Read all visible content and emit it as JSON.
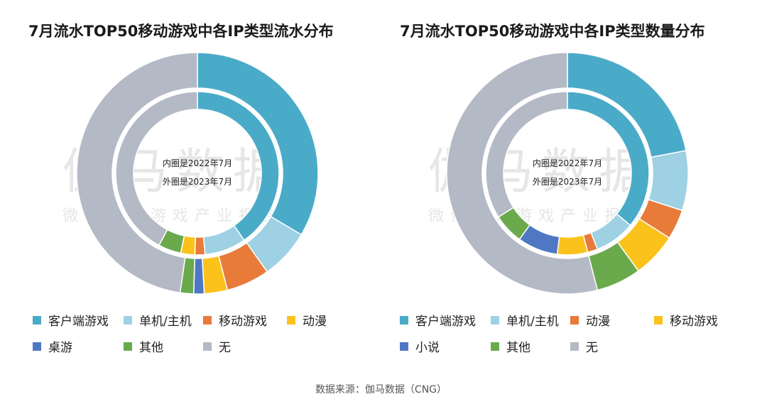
{
  "source": "数据来源：伽马数据（CNG）",
  "watermark": {
    "main": "伽马数据",
    "sub": "微信号：游戏产业报告"
  },
  "chart_data": [
    {
      "type": "donut",
      "title": "7月流水TOP50移动游戏中各IP类型流水分布",
      "center_note": [
        "内圈是2022年7月",
        "外圈是2023年7月"
      ],
      "legend_placement": "bottom",
      "categories": [
        "客户端游戏",
        "单机/主机",
        "移动游戏",
        "动漫",
        "桌游",
        "其他",
        "无"
      ],
      "colors": [
        "#4aabc8",
        "#9dd1e3",
        "#e87b3a",
        "#fbc21c",
        "#4f78c4",
        "#6aaa4d",
        "#b4b9c6"
      ],
      "series": [
        {
          "ring": "inner",
          "values": [
            40.3,
            8.2,
            2.0,
            2.8,
            0,
            4.5,
            42.2
          ]
        },
        {
          "ring": "outer",
          "values": [
            33.5,
            6.7,
            5.8,
            3.1,
            1.4,
            1.8,
            47.7
          ]
        }
      ]
    },
    {
      "type": "donut",
      "title": "7月流水TOP50移动游戏中各IP类型数量分布",
      "center_note": [
        "内圈是2022年7月",
        "外圈是2023年7月"
      ],
      "legend_placement": "bottom",
      "categories": [
        "客户端游戏",
        "单机/主机",
        "动漫",
        "移动游戏",
        "小说",
        "其他",
        "无"
      ],
      "colors": [
        "#4aabc8",
        "#9dd1e3",
        "#e87b3a",
        "#fbc21c",
        "#4f78c4",
        "#6aaa4d",
        "#b4b9c6"
      ],
      "series": [
        {
          "ring": "inner",
          "values": [
            36,
            8,
            2,
            6,
            8,
            6,
            34
          ]
        },
        {
          "ring": "outer",
          "values": [
            22,
            8,
            4,
            6,
            0,
            6,
            54
          ]
        }
      ]
    }
  ]
}
